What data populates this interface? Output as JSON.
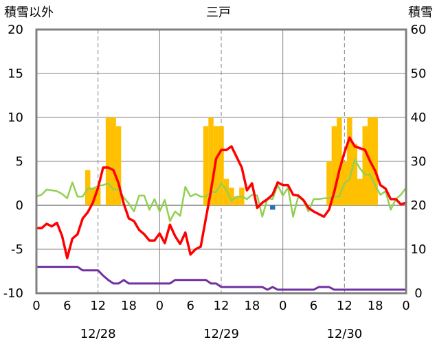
{
  "chart_data": {
    "type": "bar+line",
    "title": "三戸",
    "left_axis_label": "積雪以外",
    "right_axis_label": "積雪",
    "left_ylim": [
      -10,
      20
    ],
    "left_ticks": [
      -10,
      -5,
      0,
      5,
      10,
      15,
      20
    ],
    "right_ylim": [
      0,
      60
    ],
    "right_ticks": [
      0,
      10,
      20,
      30,
      40,
      50,
      60
    ],
    "x_range_hours": [
      0,
      72
    ],
    "x_tick_labels": [
      "0",
      "6",
      "12",
      "18",
      "0",
      "6",
      "12",
      "18",
      "0",
      "6",
      "12",
      "18",
      "0"
    ],
    "date_labels": [
      {
        "hour": 12,
        "label": "12/28"
      },
      {
        "hour": 36,
        "label": "12/29"
      },
      {
        "hour": 60,
        "label": "12/30"
      }
    ],
    "colors": {
      "bars_orange": "#FFC000",
      "bars_blue": "#1F77B4",
      "temp_line": "#FF0000",
      "green_line": "#92D050",
      "purple_line": "#7030A0",
      "axis": "#808080",
      "grid": "#808080"
    },
    "bars_orange": [
      {
        "hour": 10,
        "value": 4
      },
      {
        "hour": 11,
        "value": 2
      },
      {
        "hour": 12,
        "value": 2
      },
      {
        "hour": 14,
        "value": 10
      },
      {
        "hour": 15,
        "value": 10
      },
      {
        "hour": 16,
        "value": 9
      },
      {
        "hour": 33,
        "value": 9
      },
      {
        "hour": 34,
        "value": 10
      },
      {
        "hour": 35,
        "value": 9
      },
      {
        "hour": 36,
        "value": 9
      },
      {
        "hour": 37,
        "value": 3
      },
      {
        "hour": 38,
        "value": 2
      },
      {
        "hour": 39,
        "value": 1
      },
      {
        "hour": 40,
        "value": 2
      },
      {
        "hour": 57,
        "value": 5
      },
      {
        "hour": 58,
        "value": 9
      },
      {
        "hour": 59,
        "value": 10
      },
      {
        "hour": 60,
        "value": 5
      },
      {
        "hour": 61,
        "value": 10
      },
      {
        "hour": 62,
        "value": 7
      },
      {
        "hour": 63,
        "value": 3
      },
      {
        "hour": 64,
        "value": 9
      },
      {
        "hour": 65,
        "value": 10
      },
      {
        "hour": 66,
        "value": 10
      }
    ],
    "bars_blue": [
      {
        "hour": 46,
        "value": -0.5
      }
    ],
    "temp_line": [
      [
        0,
        -2.6
      ],
      [
        1,
        -2.6
      ],
      [
        2,
        -2.1
      ],
      [
        3,
        -2.4
      ],
      [
        4,
        -2.0
      ],
      [
        5,
        -3.5
      ],
      [
        6,
        -6.0
      ],
      [
        7,
        -3.8
      ],
      [
        8,
        -3.3
      ],
      [
        9,
        -1.5
      ],
      [
        10,
        -0.8
      ],
      [
        11,
        0.3
      ],
      [
        12,
        2.0
      ],
      [
        13,
        4.3
      ],
      [
        14,
        4.3
      ],
      [
        15,
        4.0
      ],
      [
        16,
        2.5
      ],
      [
        17,
        0.2
      ],
      [
        18,
        -1.5
      ],
      [
        19,
        -1.8
      ],
      [
        20,
        -2.8
      ],
      [
        21,
        -3.3
      ],
      [
        22,
        -4.0
      ],
      [
        23,
        -4.0
      ],
      [
        24,
        -3.2
      ],
      [
        25,
        -4.3
      ],
      [
        26,
        -2.2
      ],
      [
        27,
        -3.5
      ],
      [
        28,
        -4.4
      ],
      [
        29,
        -3.1
      ],
      [
        30,
        -5.6
      ],
      [
        31,
        -5.0
      ],
      [
        32,
        -4.7
      ],
      [
        33,
        -1.5
      ],
      [
        34,
        1.7
      ],
      [
        35,
        5.3
      ],
      [
        36,
        6.3
      ],
      [
        37,
        6.3
      ],
      [
        38,
        6.7
      ],
      [
        39,
        5.5
      ],
      [
        40,
        4.3
      ],
      [
        41,
        1.7
      ],
      [
        42,
        2.5
      ],
      [
        43,
        -0.3
      ],
      [
        44,
        0.3
      ],
      [
        45,
        0.7
      ],
      [
        46,
        1.2
      ],
      [
        47,
        2.6
      ],
      [
        48,
        2.3
      ],
      [
        49,
        2.3
      ],
      [
        50,
        1.2
      ],
      [
        51,
        1.1
      ],
      [
        52,
        0.6
      ],
      [
        53,
        -0.3
      ],
      [
        54,
        -0.7
      ],
      [
        55,
        -1.0
      ],
      [
        56,
        -1.3
      ],
      [
        57,
        -0.5
      ],
      [
        58,
        1.5
      ],
      [
        59,
        4.0
      ],
      [
        60,
        6.0
      ],
      [
        61,
        7.7
      ],
      [
        62,
        6.7
      ],
      [
        63,
        6.5
      ],
      [
        64,
        6.3
      ],
      [
        65,
        5.0
      ],
      [
        66,
        3.9
      ],
      [
        67,
        2.3
      ],
      [
        68,
        1.9
      ],
      [
        69,
        0.7
      ],
      [
        70,
        0.7
      ],
      [
        71,
        0.1
      ],
      [
        72,
        0.3
      ]
    ],
    "green_line": [
      [
        0,
        1.0
      ],
      [
        1,
        1.2
      ],
      [
        2,
        1.8
      ],
      [
        3,
        1.7
      ],
      [
        4,
        1.6
      ],
      [
        5,
        1.3
      ],
      [
        6,
        0.8
      ],
      [
        7,
        2.6
      ],
      [
        8,
        1.0
      ],
      [
        9,
        1.0
      ],
      [
        10,
        1.9
      ],
      [
        11,
        1.9
      ],
      [
        12,
        2.2
      ],
      [
        13,
        2.3
      ],
      [
        14,
        2.5
      ],
      [
        15,
        1.8
      ],
      [
        16,
        1.8
      ],
      [
        17,
        0.9
      ],
      [
        18,
        0.2
      ],
      [
        19,
        -0.7
      ],
      [
        20,
        1.1
      ],
      [
        21,
        1.1
      ],
      [
        22,
        -0.5
      ],
      [
        23,
        0.7
      ],
      [
        24,
        -0.7
      ],
      [
        25,
        0.6
      ],
      [
        26,
        -1.8
      ],
      [
        27,
        -0.7
      ],
      [
        28,
        -1.2
      ],
      [
        29,
        2.1
      ],
      [
        30,
        1.0
      ],
      [
        31,
        1.3
      ],
      [
        32,
        1.0
      ],
      [
        33,
        1.0
      ],
      [
        34,
        1.5
      ],
      [
        35,
        1.5
      ],
      [
        36,
        2.5
      ],
      [
        37,
        1.8
      ],
      [
        38,
        0.5
      ],
      [
        39,
        1.0
      ],
      [
        40,
        1.0
      ],
      [
        41,
        0.7
      ],
      [
        42,
        1.2
      ],
      [
        43,
        1.1
      ],
      [
        44,
        -1.3
      ],
      [
        45,
        0.8
      ],
      [
        46,
        0.7
      ],
      [
        47,
        2.3
      ],
      [
        48,
        1.1
      ],
      [
        49,
        2.0
      ],
      [
        50,
        -1.3
      ],
      [
        51,
        1.0
      ],
      [
        52,
        0.5
      ],
      [
        53,
        -0.7
      ],
      [
        54,
        0.7
      ],
      [
        55,
        0.7
      ],
      [
        56,
        0.8
      ],
      [
        57,
        0.8
      ],
      [
        58,
        1.0
      ],
      [
        59,
        1.0
      ],
      [
        60,
        2.5
      ],
      [
        61,
        3.0
      ],
      [
        62,
        5.2
      ],
      [
        63,
        4.2
      ],
      [
        64,
        3.5
      ],
      [
        65,
        3.5
      ],
      [
        66,
        2.2
      ],
      [
        67,
        1.2
      ],
      [
        68,
        1.6
      ],
      [
        69,
        -0.5
      ],
      [
        70,
        0.7
      ],
      [
        71,
        1.2
      ],
      [
        72,
        2.0
      ]
    ],
    "purple_line": [
      [
        0,
        -7.0
      ],
      [
        7,
        -7.0
      ],
      [
        8,
        -7.0
      ],
      [
        9,
        -7.4
      ],
      [
        10,
        -7.4
      ],
      [
        11,
        -7.4
      ],
      [
        12,
        -7.4
      ],
      [
        13,
        -8.0
      ],
      [
        14,
        -8.5
      ],
      [
        15,
        -8.9
      ],
      [
        16,
        -8.9
      ],
      [
        17,
        -8.5
      ],
      [
        18,
        -8.9
      ],
      [
        21,
        -8.9
      ],
      [
        24,
        -8.9
      ],
      [
        26,
        -8.9
      ],
      [
        27,
        -8.5
      ],
      [
        33,
        -8.5
      ],
      [
        34,
        -8.9
      ],
      [
        35,
        -8.9
      ],
      [
        36,
        -9.3
      ],
      [
        44,
        -9.3
      ],
      [
        45,
        -9.6
      ],
      [
        46,
        -9.3
      ],
      [
        47,
        -9.6
      ],
      [
        54,
        -9.6
      ],
      [
        55,
        -9.3
      ],
      [
        57,
        -9.3
      ],
      [
        58,
        -9.6
      ],
      [
        72,
        -9.6
      ]
    ]
  }
}
